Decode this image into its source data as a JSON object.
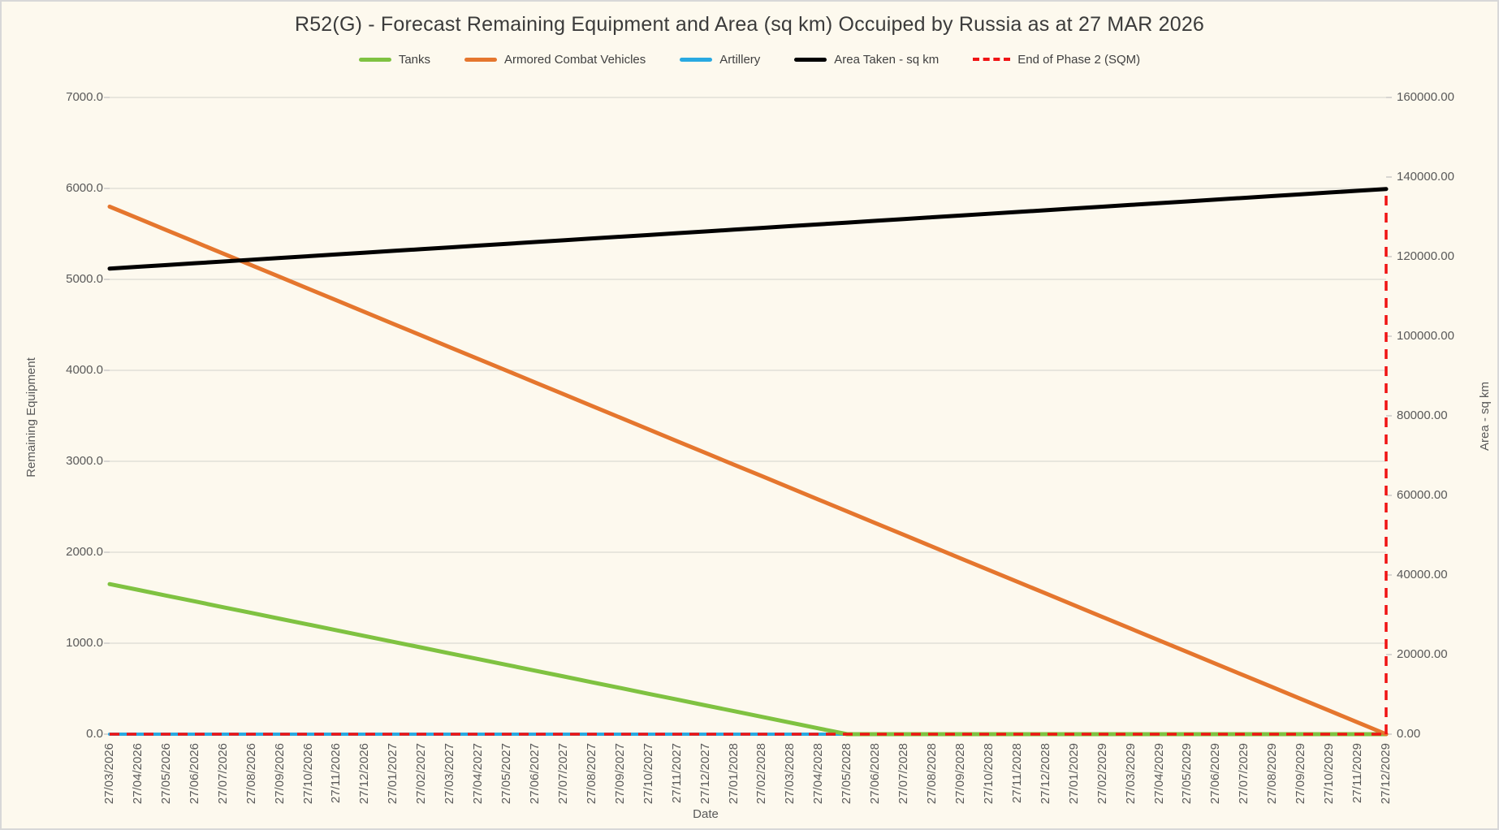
{
  "title": "R52(G) - Forecast Remaining Equipment and Area (sq km) Occuiped by Russia as at 27 MAR 2026",
  "colors": {
    "background": "#FDF9EE",
    "frame_border": "#D8D8D8",
    "gridline": "#DBDBD3",
    "tick_mark": "#BFBFBF",
    "title_text": "#3B3B3B",
    "axis_text": "#595959",
    "tanks": "#7FC241",
    "armored_combat_vehicles": "#E5762E",
    "artillery": "#29A9E1",
    "area_taken": "#000000",
    "end_of_phase2": "#F01414"
  },
  "legend": {
    "items": [
      {
        "label": "Tanks",
        "color": "#7FC241",
        "style": "solid"
      },
      {
        "label": "Armored Combat Vehicles",
        "color": "#E5762E",
        "style": "solid"
      },
      {
        "label": "Artillery",
        "color": "#29A9E1",
        "style": "solid"
      },
      {
        "label": "Area Taken - sq km",
        "color": "#000000",
        "style": "solid"
      },
      {
        "label": "End of Phase 2 (SQM)",
        "color": "#F01414",
        "style": "dashed"
      }
    ]
  },
  "left_axis": {
    "title": "Remaining Equipment",
    "min": 0,
    "max": 7000,
    "step": 1000,
    "ticks": [
      "0.0",
      "1000.0",
      "2000.0",
      "3000.0",
      "4000.0",
      "5000.0",
      "6000.0",
      "7000.0"
    ]
  },
  "right_axis": {
    "title": "Area - sq km",
    "min": 0,
    "max": 160000,
    "step": 20000,
    "ticks": [
      "0.00",
      "20000.00",
      "40000.00",
      "60000.00",
      "80000.00",
      "100000.00",
      "120000.00",
      "140000.00",
      "160000.00"
    ]
  },
  "x_axis": {
    "title": "Date"
  },
  "chart_data": {
    "type": "line",
    "title": "R52(G) - Forecast Remaining Equipment and Area (sq km) Occuiped by Russia as at 27 MAR 2026",
    "xlabel": "Date",
    "ylabel_left": "Remaining Equipment",
    "ylabel_right": "Area - sq km",
    "ylim_left": [
      0,
      7000
    ],
    "ylim_right": [
      0,
      160000
    ],
    "grid": true,
    "legend_position": "top",
    "x": [
      "27/03/2026",
      "27/04/2026",
      "27/05/2026",
      "27/06/2026",
      "27/07/2026",
      "27/08/2026",
      "27/09/2026",
      "27/10/2026",
      "27/11/2026",
      "27/12/2026",
      "27/01/2027",
      "27/02/2027",
      "27/03/2027",
      "27/04/2027",
      "27/05/2027",
      "27/06/2027",
      "27/07/2027",
      "27/08/2027",
      "27/09/2027",
      "27/10/2027",
      "27/11/2027",
      "27/12/2027",
      "27/01/2028",
      "27/02/2028",
      "27/03/2028",
      "27/04/2028",
      "27/05/2028",
      "27/06/2028",
      "27/07/2028",
      "27/08/2028",
      "27/09/2028",
      "27/10/2028",
      "27/11/2028",
      "27/12/2028",
      "27/01/2029",
      "27/02/2029",
      "27/03/2029",
      "27/04/2029",
      "27/05/2029",
      "27/06/2029",
      "27/07/2029",
      "27/08/2029",
      "27/09/2029",
      "27/10/2029",
      "27/11/2029",
      "27/12/2029"
    ],
    "series": [
      {
        "name": "Tanks",
        "axis": "left",
        "color": "#7FC241",
        "width": 5,
        "values": [
          1650,
          1587,
          1523,
          1460,
          1396,
          1333,
          1269,
          1206,
          1142,
          1079,
          1015,
          952,
          888,
          825,
          762,
          698,
          635,
          571,
          508,
          444,
          381,
          317,
          254,
          190,
          127,
          63,
          0,
          0,
          0,
          0,
          0,
          0,
          0,
          0,
          0,
          0,
          0,
          0,
          0,
          0,
          0,
          0,
          0,
          0,
          0,
          0
        ]
      },
      {
        "name": "Armored Combat Vehicles",
        "axis": "left",
        "color": "#E5762E",
        "width": 5,
        "values": [
          5800,
          5671,
          5542,
          5413,
          5284,
          5156,
          5027,
          4898,
          4769,
          4640,
          4511,
          4382,
          4253,
          4124,
          3996,
          3867,
          3738,
          3609,
          3480,
          3351,
          3222,
          3093,
          2964,
          2836,
          2707,
          2578,
          2449,
          2320,
          2191,
          2062,
          1933,
          1804,
          1676,
          1547,
          1418,
          1289,
          1160,
          1031,
          902,
          773,
          644,
          516,
          387,
          258,
          129,
          0
        ]
      },
      {
        "name": "Artillery",
        "axis": "left",
        "color": "#29A9E1",
        "width": 4,
        "values": [
          0,
          0,
          0,
          0,
          0,
          0,
          0,
          0,
          0,
          0,
          0,
          0,
          0,
          0,
          0,
          0,
          0,
          0,
          0,
          0,
          0,
          0,
          0,
          0,
          0,
          0,
          0,
          0,
          0,
          0,
          0,
          0,
          0,
          0,
          0,
          0,
          0,
          0,
          0,
          0,
          0,
          0,
          0,
          0,
          0,
          0
        ]
      },
      {
        "name": "Area Taken - sq km",
        "axis": "right",
        "color": "#000000",
        "width": 5,
        "values": [
          117000,
          117444,
          117889,
          118333,
          118778,
          119222,
          119667,
          120111,
          120556,
          121000,
          121444,
          121889,
          122333,
          122778,
          123222,
          123667,
          124111,
          124556,
          125000,
          125444,
          125889,
          126333,
          126778,
          127222,
          127667,
          128111,
          128556,
          129000,
          129444,
          129889,
          130333,
          130778,
          131222,
          131667,
          132111,
          132556,
          133000,
          133444,
          133889,
          134333,
          134778,
          135222,
          135667,
          136111,
          136556,
          137000
        ]
      }
    ],
    "end_of_phase2": {
      "name": "End of Phase 2 (SQM)",
      "axis": "right",
      "color": "#F01414",
      "style": "dashed",
      "baseline_value": 0,
      "final_date": "27/12/2029",
      "final_value": 137000
    }
  }
}
